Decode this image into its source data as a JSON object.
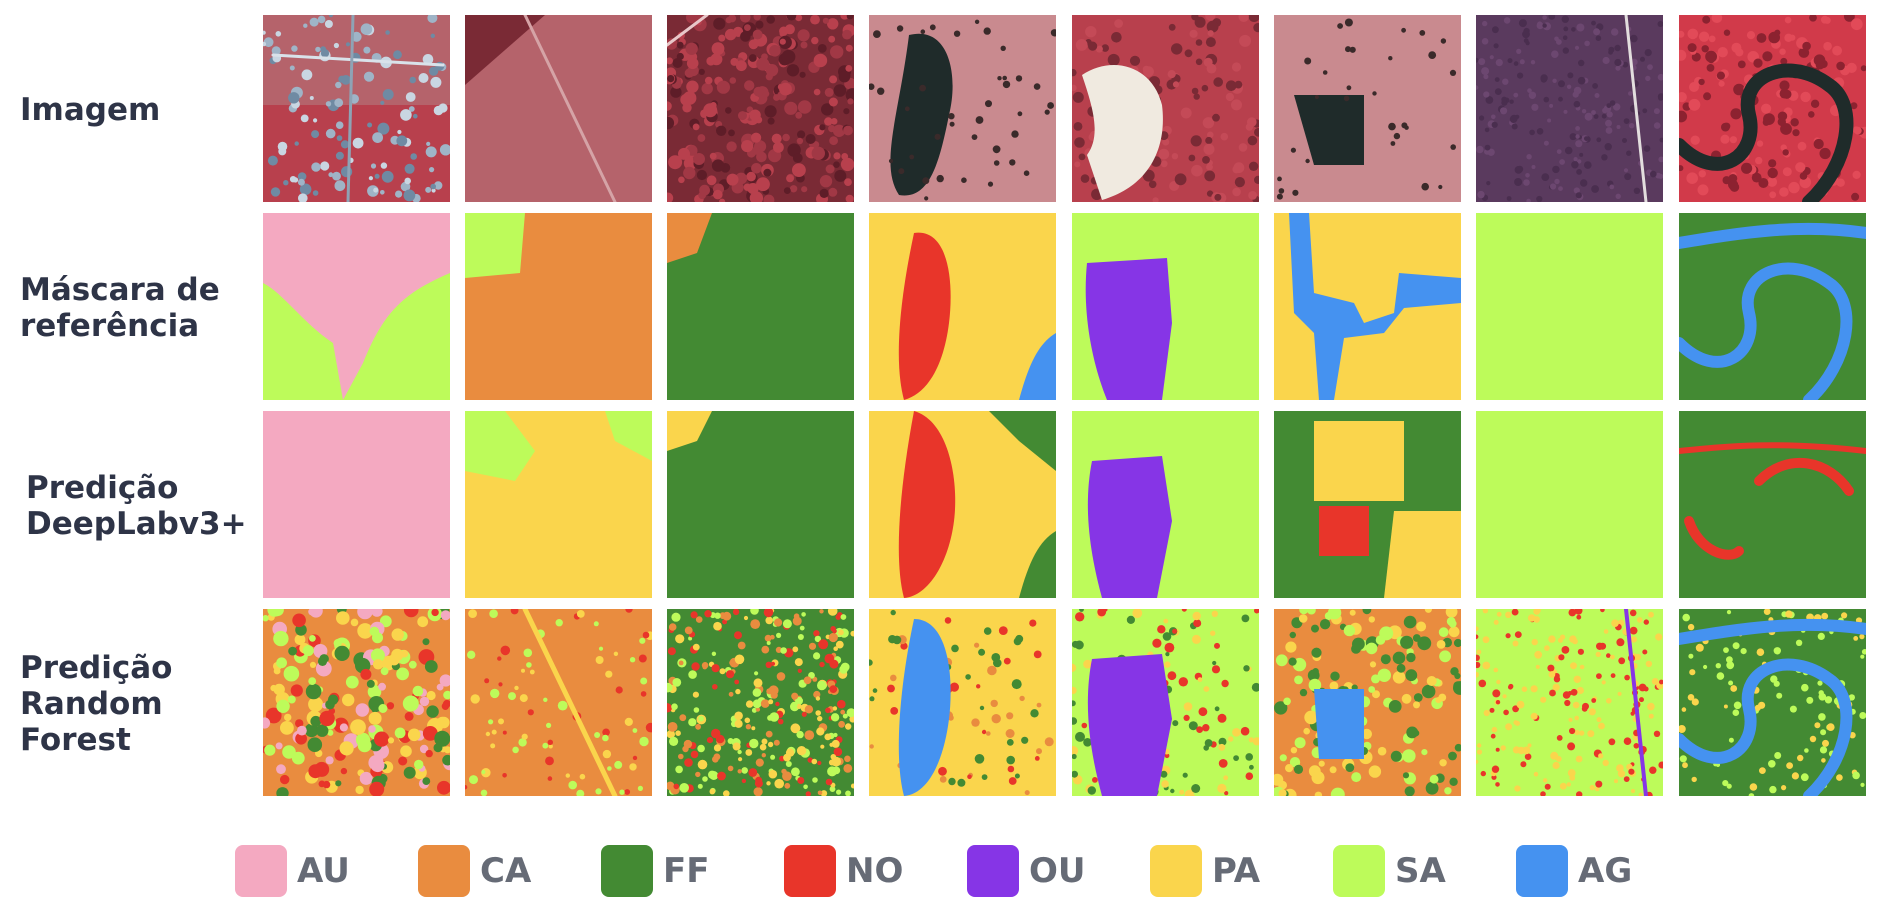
{
  "rows": [
    {
      "label_lines": [
        "Imagem"
      ]
    },
    {
      "label_lines": [
        "Máscara de",
        "referência"
      ]
    },
    {
      "label_lines": [
        "Predição",
        "DeepLabv3+"
      ]
    },
    {
      "label_lines": [
        "Predição",
        "Random",
        "Forest"
      ]
    }
  ],
  "legend": [
    {
      "code": "AU",
      "color": "#f4a9c1"
    },
    {
      "code": "CA",
      "color": "#e98c3f"
    },
    {
      "code": "FF",
      "color": "#438a33"
    },
    {
      "code": "NO",
      "color": "#e8352a"
    },
    {
      "code": "OU",
      "color": "#8635e6"
    },
    {
      "code": "PA",
      "color": "#fad54c"
    },
    {
      "code": "SA",
      "color": "#bdfb5a"
    },
    {
      "code": "AG",
      "color": "#4592f0"
    }
  ],
  "image_palette": {
    "red_veg": "#b8404d",
    "dark_veg": "#7a2a35",
    "field": "#b5636b",
    "pale_field": "#c98a8f",
    "water": "#1f2b2a",
    "urban": "#9fb4c7",
    "bare": "#f0eae0",
    "purple_forest": "#5a3a5e"
  }
}
